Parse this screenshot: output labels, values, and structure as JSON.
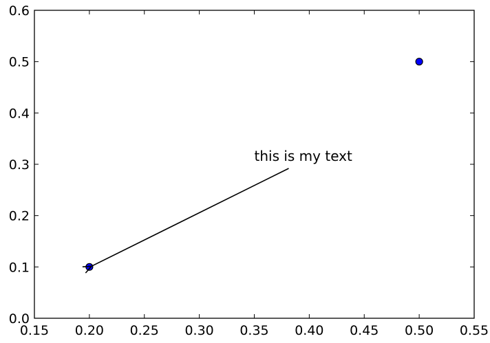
{
  "chart_data": {
    "type": "scatter",
    "title": "",
    "xlabel": "",
    "ylabel": "",
    "xlim": [
      0.15,
      0.55
    ],
    "ylim": [
      0.0,
      0.6
    ],
    "xticks": [
      "0.15",
      "0.20",
      "0.25",
      "0.30",
      "0.35",
      "0.40",
      "0.45",
      "0.50",
      "0.55"
    ],
    "yticks": [
      "0.0",
      "0.1",
      "0.2",
      "0.3",
      "0.4",
      "0.5",
      "0.6"
    ],
    "grid": false,
    "series": [
      {
        "points": [
          {
            "x": 0.2,
            "y": 0.1
          },
          {
            "x": 0.5,
            "y": 0.5
          }
        ],
        "color": "#0000ff",
        "edge_color": "#000000"
      }
    ],
    "annotations": [
      {
        "text": "this is my text",
        "xy": [
          0.2,
          0.1
        ],
        "xytext": [
          0.35,
          0.3
        ]
      }
    ]
  }
}
